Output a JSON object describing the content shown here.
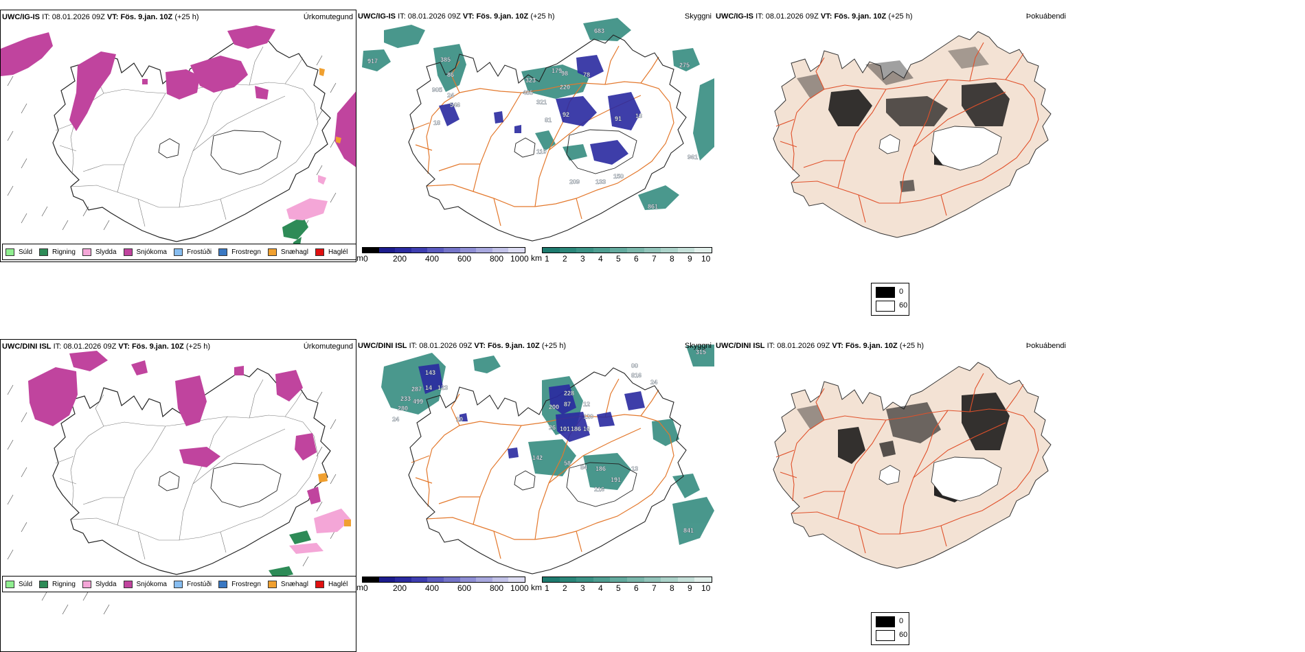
{
  "panels": {
    "igis": {
      "model": "UWC/IG-IS",
      "it_label": "IT:",
      "it": "08.01.2026 09Z",
      "vt_label": "VT:",
      "vt": "Fös. 9.jan. 10Z",
      "lead": "(+25 h)"
    },
    "dini": {
      "model": "UWC/DINI ISL",
      "it_label": "IT:",
      "it": "08.01.2026 09Z",
      "vt_label": "VT:",
      "vt": "Fös. 9.jan. 10Z",
      "lead": "(+25 h)"
    }
  },
  "titles": {
    "precip_type": "Úrkomutegund",
    "visibility": "Skyggni",
    "fog": "Þokuábendi"
  },
  "precip_legend": [
    {
      "label": "Súld",
      "color": "#90ee90"
    },
    {
      "label": "Rigning",
      "color": "#2e8b57"
    },
    {
      "label": "Slydda",
      "color": "#f4a6d7"
    },
    {
      "label": "Snjókoma",
      "color": "#c0449e"
    },
    {
      "label": "Frostúði",
      "color": "#87bdf0"
    },
    {
      "label": "Frostregn",
      "color": "#3a78c2"
    },
    {
      "label": "Snæhagl",
      "color": "#f0a030"
    },
    {
      "label": "Haglél",
      "color": "#e01010"
    }
  ],
  "visibility_bars": {
    "m_unit": "m",
    "m_ticks": [
      "0",
      "200",
      "400",
      "600",
      "800",
      "1000"
    ],
    "m_colors": [
      "#000000",
      "#1c1c8c",
      "#2a2aa0",
      "#3e3eb0",
      "#5a5abf",
      "#7474c8",
      "#8e8ed4",
      "#a8a8de",
      "#c2c2e8",
      "#dcdcf2"
    ],
    "km_unit": "km",
    "km_ticks": [
      "1",
      "2",
      "3",
      "4",
      "5",
      "6",
      "7",
      "8",
      "9",
      "10"
    ],
    "km_colors": [
      "#1d7a6e",
      "#2a8679",
      "#3a9285",
      "#4e9e91",
      "#63aa9e",
      "#7ab7ab",
      "#92c4ba",
      "#abd2c9",
      "#c5e0d9",
      "#e2efeb"
    ]
  },
  "fog_scale": {
    "max_label": "0",
    "min_label": "60",
    "max_color": "#000000",
    "min_color": "#ffffff"
  },
  "visibility_labels_top": [
    "917",
    "385",
    "86",
    "905",
    "24",
    "546",
    "18",
    "323",
    "485",
    "321",
    "179",
    "98",
    "78",
    "220",
    "81",
    "92",
    "91",
    "13",
    "110",
    "209",
    "133",
    "150",
    "683",
    "275",
    "961",
    "861"
  ],
  "visibility_labels_bottom": [
    "143",
    "287",
    "14",
    "123",
    "233",
    "499",
    "280",
    "24",
    "10",
    "228",
    "200",
    "87",
    "12",
    "120",
    "16",
    "26",
    "101",
    "186",
    "142",
    "58",
    "84",
    "186",
    "13",
    "191",
    "216",
    "315",
    "00",
    "816",
    "24",
    "841"
  ],
  "colors": {
    "snow": "#c0449e",
    "rain": "#2e8b57",
    "sleet": "#f4a6d7",
    "snow_pellets": "#f0a030",
    "land": "#f3e2d4",
    "roads": "#e3782c",
    "coast": "#333333",
    "vis_teal": "#2a8679",
    "vis_blue": "#2a2aa0"
  }
}
